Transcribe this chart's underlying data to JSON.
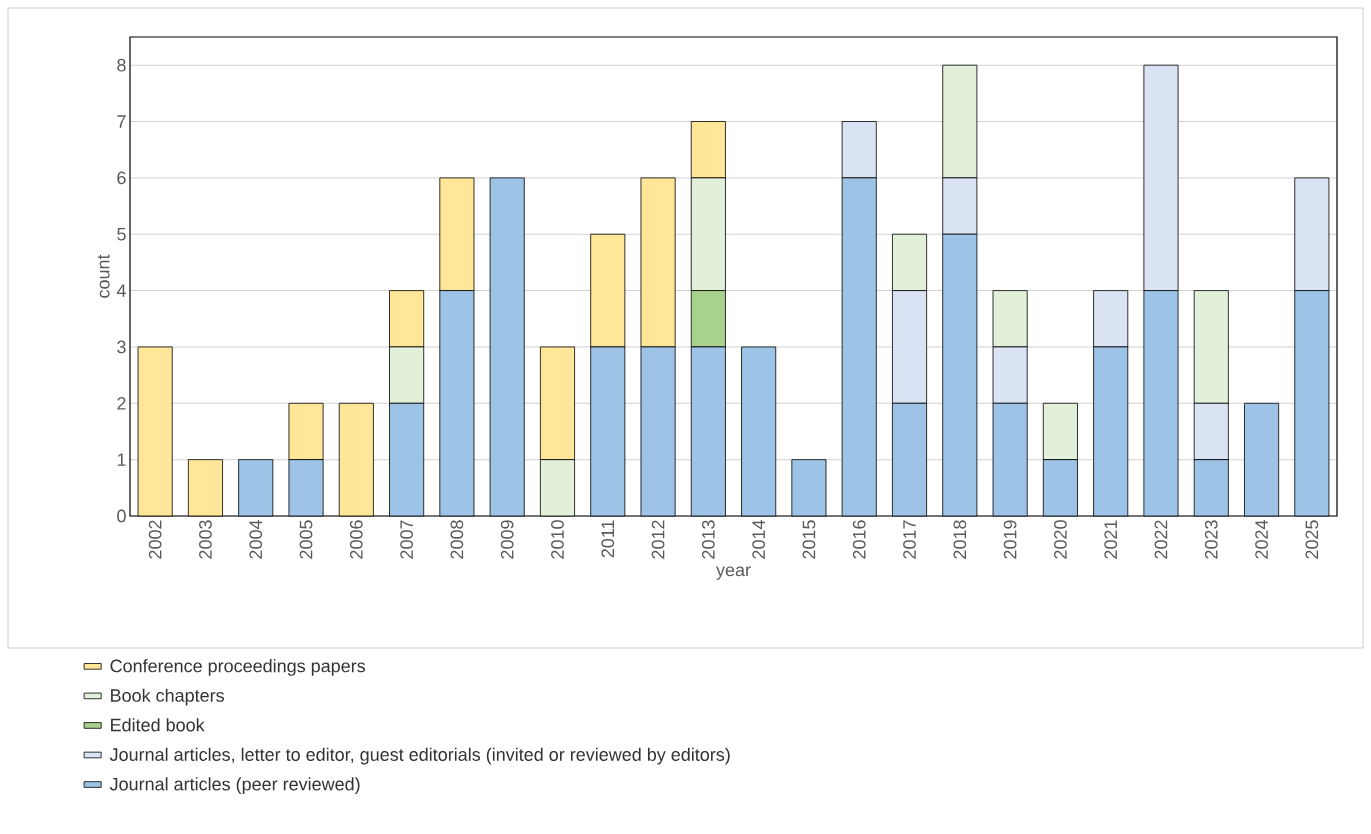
{
  "chart_data": {
    "type": "bar",
    "stacked": true,
    "xlabel": "year",
    "ylabel": "count",
    "categories": [
      "2002",
      "2003",
      "2004",
      "2005",
      "2006",
      "2007",
      "2008",
      "2009",
      "2010",
      "2011",
      "2012",
      "2013",
      "2014",
      "2015",
      "2016",
      "2017",
      "2018",
      "2019",
      "2020",
      "2021",
      "2022",
      "2023",
      "2024",
      "2025"
    ],
    "series": [
      {
        "name": "Journal articles (peer reviewed)",
        "color": "#9dc3e6",
        "values": [
          0,
          0,
          1,
          1,
          0,
          2,
          4,
          6,
          0,
          3,
          3,
          3,
          3,
          1,
          6,
          2,
          5,
          2,
          1,
          3,
          4,
          1,
          2,
          4
        ]
      },
      {
        "name": "Journal articles, letter to editor, guest editorials (invited or reviewed by editors)",
        "color": "#dae3f3",
        "values": [
          0,
          0,
          0,
          0,
          0,
          0,
          0,
          0,
          0,
          0,
          0,
          0,
          0,
          0,
          1,
          2,
          1,
          1,
          0,
          1,
          4,
          1,
          0,
          2
        ]
      },
      {
        "name": "Edited book",
        "color": "#a9d18e",
        "values": [
          0,
          0,
          0,
          0,
          0,
          0,
          0,
          0,
          0,
          0,
          0,
          1,
          0,
          0,
          0,
          0,
          0,
          0,
          0,
          0,
          0,
          0,
          0,
          0
        ]
      },
      {
        "name": "Book chapters",
        "color": "#e2f0d9",
        "values": [
          0,
          0,
          0,
          0,
          0,
          1,
          0,
          0,
          1,
          0,
          0,
          2,
          0,
          0,
          0,
          1,
          2,
          1,
          1,
          0,
          0,
          2,
          0,
          0
        ]
      },
      {
        "name": "Conference proceedings papers",
        "color": "#ffe699",
        "values": [
          3,
          1,
          0,
          1,
          2,
          1,
          2,
          0,
          2,
          2,
          3,
          1,
          0,
          0,
          0,
          0,
          0,
          0,
          0,
          0,
          0,
          0,
          0,
          0
        ]
      }
    ],
    "ylim": [
      0,
      8.5
    ],
    "yticks": [
      0,
      1,
      2,
      3,
      4,
      5,
      6,
      7,
      8
    ],
    "grid": "y",
    "legend": "bottom"
  }
}
